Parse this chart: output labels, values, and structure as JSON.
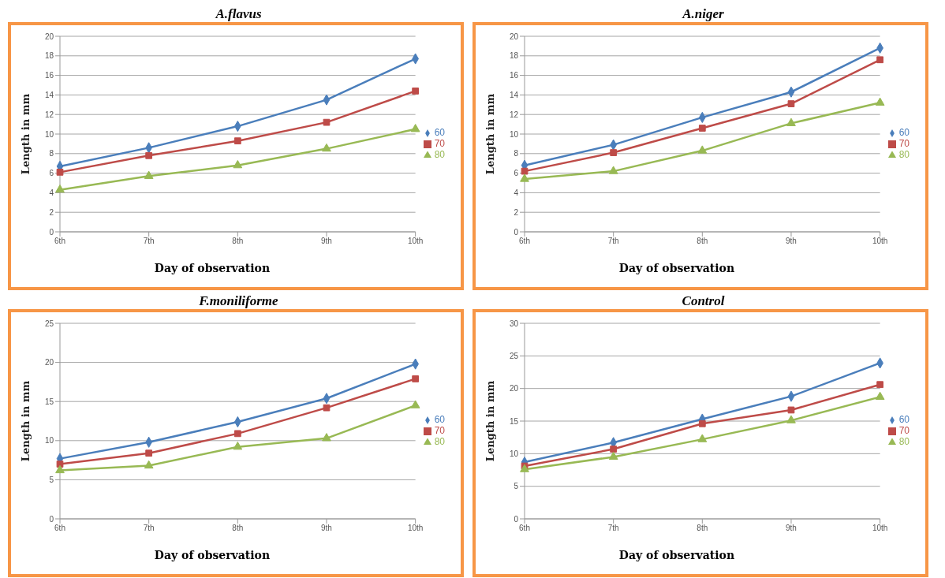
{
  "chart_data": [
    {
      "type": "line",
      "title": "A.flavus",
      "xlabel": "Day of observation",
      "ylabel": "Length in mm",
      "categories": [
        "6th",
        "7th",
        "8th",
        "9th",
        "10th"
      ],
      "series": [
        {
          "name": "60",
          "color": "#4a7ebb",
          "marker": "diamond",
          "values": [
            6.7,
            8.6,
            10.8,
            13.5,
            17.7
          ]
        },
        {
          "name": "70",
          "color": "#be4b48",
          "marker": "square",
          "values": [
            6.1,
            7.8,
            9.3,
            11.2,
            14.4
          ]
        },
        {
          "name": "80",
          "color": "#98b954",
          "marker": "triangle",
          "values": [
            4.3,
            5.7,
            6.8,
            8.5,
            10.5
          ]
        }
      ],
      "ylim": [
        0,
        20
      ],
      "yticks": [
        0,
        2,
        4,
        6,
        8,
        10,
        12,
        14,
        16,
        18,
        20
      ],
      "grid": "y",
      "legend": "right"
    },
    {
      "type": "line",
      "title": "A.niger",
      "xlabel": "Day of observation",
      "ylabel": "Length in mm",
      "categories": [
        "6th",
        "7th",
        "8th",
        "9th",
        "10th"
      ],
      "series": [
        {
          "name": "60",
          "color": "#4a7ebb",
          "marker": "diamond",
          "values": [
            6.8,
            8.9,
            11.7,
            14.3,
            18.8
          ]
        },
        {
          "name": "70",
          "color": "#be4b48",
          "marker": "square",
          "values": [
            6.2,
            8.1,
            10.6,
            13.1,
            17.6
          ]
        },
        {
          "name": "80",
          "color": "#98b954",
          "marker": "triangle",
          "values": [
            5.4,
            6.2,
            8.3,
            11.1,
            13.2
          ]
        }
      ],
      "ylim": [
        0,
        20
      ],
      "yticks": [
        0,
        2,
        4,
        6,
        8,
        10,
        12,
        14,
        16,
        18,
        20
      ],
      "grid": "y",
      "legend": "right"
    },
    {
      "type": "line",
      "title": "F.moniliforme",
      "xlabel": "Day of observation",
      "ylabel": "Length in mm",
      "categories": [
        "6th",
        "7th",
        "8th",
        "9th",
        "10th"
      ],
      "series": [
        {
          "name": "60",
          "color": "#4a7ebb",
          "marker": "diamond",
          "values": [
            7.7,
            9.8,
            12.4,
            15.4,
            19.8
          ]
        },
        {
          "name": "70",
          "color": "#be4b48",
          "marker": "square",
          "values": [
            7.0,
            8.4,
            10.9,
            14.2,
            17.9
          ]
        },
        {
          "name": "80",
          "color": "#98b954",
          "marker": "triangle",
          "values": [
            6.2,
            6.8,
            9.2,
            10.3,
            14.5
          ]
        }
      ],
      "ylim": [
        0,
        25
      ],
      "yticks": [
        0,
        5,
        10,
        15,
        20,
        25
      ],
      "grid": "y",
      "legend": "right"
    },
    {
      "type": "line",
      "title": "Control",
      "xlabel": "Day of observation",
      "ylabel": "Length in mm",
      "categories": [
        "6th",
        "7th",
        "8th",
        "9th",
        "10th"
      ],
      "series": [
        {
          "name": "60",
          "color": "#4a7ebb",
          "marker": "diamond",
          "values": [
            8.7,
            11.7,
            15.3,
            18.8,
            23.9
          ]
        },
        {
          "name": "70",
          "color": "#be4b48",
          "marker": "square",
          "values": [
            8.1,
            10.7,
            14.6,
            16.7,
            20.6
          ]
        },
        {
          "name": "80",
          "color": "#98b954",
          "marker": "triangle",
          "values": [
            7.6,
            9.5,
            12.2,
            15.1,
            18.7
          ]
        }
      ],
      "ylim": [
        0,
        30
      ],
      "yticks": [
        0,
        5,
        10,
        15,
        20,
        25,
        30
      ],
      "grid": "y",
      "legend": "right"
    }
  ]
}
